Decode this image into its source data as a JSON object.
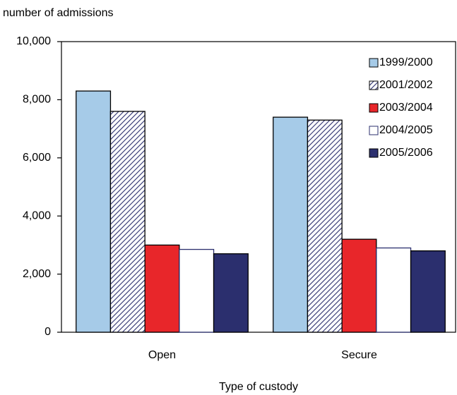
{
  "chart_data": {
    "type": "bar",
    "y_label": "number of admissions",
    "x_label": "Type of custody",
    "categories": [
      "Open",
      "Secure"
    ],
    "series": [
      {
        "name": "1999/2000",
        "color": "#a6cbe8",
        "values": [
          8300,
          7400
        ]
      },
      {
        "name": "2001/2002",
        "color": "#2b2f6e",
        "hatch": true,
        "values": [
          7600,
          7300
        ]
      },
      {
        "name": "2003/2004",
        "color": "#e8262a",
        "values": [
          3000,
          3200
        ]
      },
      {
        "name": "2004/2005",
        "color": "#ffffff",
        "edgecolor": "#2b2f6e",
        "values": [
          2850,
          2900
        ]
      },
      {
        "name": "2005/2006",
        "color": "#2b2f6e",
        "values": [
          2700,
          2800
        ]
      }
    ],
    "ylim": [
      0,
      10000
    ],
    "yticks": [
      0,
      {
        "value": 2000,
        "label": "2,000"
      },
      {
        "value": 4000,
        "label": "4,000"
      },
      {
        "value": 6000,
        "label": "6,000"
      },
      {
        "value": 8000,
        "label": "8,000"
      },
      {
        "value": 10000,
        "label": "10,000"
      }
    ],
    "legend": "upper right"
  }
}
